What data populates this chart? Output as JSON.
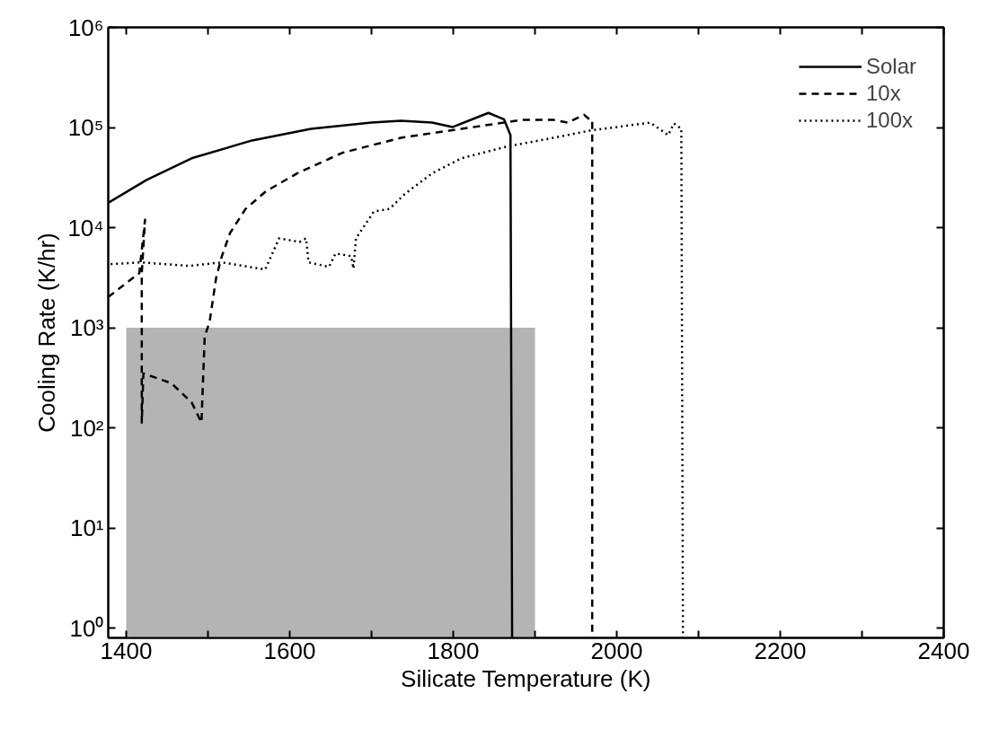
{
  "chart_data": {
    "type": "line",
    "xlabel": "Silicate Temperature (K)",
    "ylabel": "Cooling Rate (K/hr)",
    "log": "y",
    "grid": false,
    "legend": "top right",
    "xlim": [
      1378,
      2400
    ],
    "xticks": [
      1400,
      {
        "value": 1500,
        "label": null
      },
      1600,
      {
        "value": 1700,
        "label": null
      },
      1800,
      {
        "value": 1900,
        "label": null
      },
      2000,
      {
        "value": 2100,
        "label": null
      },
      2200,
      {
        "value": 2300,
        "label": null
      },
      2400
    ],
    "ylim": [
      0.8,
      1000000
    ],
    "yticks": [
      {
        "value": 1,
        "label": "10⁰"
      },
      {
        "value": 10,
        "label": "10¹"
      },
      {
        "value": 100,
        "label": "10²"
      },
      {
        "value": 1000,
        "label": "10³"
      },
      {
        "value": 10000,
        "label": "10⁴"
      },
      {
        "value": 100000,
        "label": "10⁵"
      },
      {
        "value": 1000000,
        "label": "10⁶"
      }
    ],
    "series": [
      {
        "type": "area",
        "color": "#b4b4b4",
        "x": [
          1400,
          1900
        ],
        "values": [
          1000,
          1000
        ]
      },
      {
        "name": "Solar",
        "color": "#000000",
        "line_style": "solid",
        "x": [
          1378,
          1425,
          1480,
          1554,
          1626,
          1700,
          1736,
          1774,
          1799,
          1843,
          1862,
          1870,
          1872
        ],
        "values": [
          17700,
          30000,
          49300,
          74300,
          97000,
          112000,
          117000,
          112000,
          101000,
          140000,
          121000,
          84000,
          0.8
        ]
      },
      {
        "name": "10x",
        "color": "#000000",
        "line_style": "dashed",
        "x": [
          1378,
          1416,
          1423,
          1419,
          1419,
          1421,
          1455,
          1480,
          1492,
          1496,
          1502,
          1510,
          1517,
          1527,
          1546,
          1571,
          1609,
          1664,
          1736,
          1810,
          1884,
          1923,
          1940,
          1960,
          1967,
          1970,
          1970
        ],
        "values": [
          2030,
          3520,
          12000,
          3500,
          113,
          350,
          280,
          180,
          113,
          820,
          1150,
          3170,
          5200,
          8850,
          15400,
          23100,
          34800,
          55800,
          79000,
          97000,
          119000,
          119000,
          112000,
          134000,
          120000,
          120000,
          0.8
        ]
      },
      {
        "name": "100x",
        "color": "#000000",
        "line_style": "dotted",
        "x": [
          1381,
          1418,
          1477,
          1517,
          1570,
          1587,
          1612,
          1620,
          1623,
          1648,
          1656,
          1675,
          1678,
          1681,
          1703,
          1722,
          1741,
          1774,
          1810,
          1865,
          1923,
          1967,
          2041,
          2063,
          2070,
          2079,
          2081
        ],
        "values": [
          4320,
          4500,
          4150,
          4500,
          3820,
          7820,
          7200,
          7820,
          4500,
          4060,
          5520,
          5200,
          3900,
          7820,
          14500,
          15400,
          21800,
          34800,
          49300,
          64400,
          79000,
          93100,
          112000,
          84000,
          110000,
          97000,
          0.8
        ]
      }
    ]
  }
}
